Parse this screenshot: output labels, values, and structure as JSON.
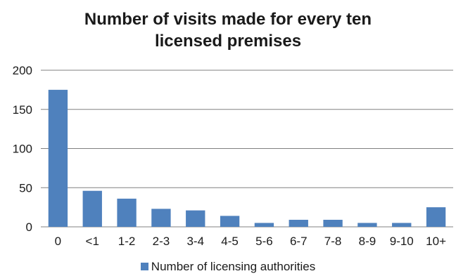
{
  "chart_data": {
    "type": "bar",
    "title_lines": [
      "Number of visits made for every ten",
      "licensed premises"
    ],
    "categories": [
      "0",
      "<1",
      "1-2",
      "2-3",
      "3-4",
      "4-5",
      "5-6",
      "6-7",
      "7-8",
      "8-9",
      "9-10",
      "10+"
    ],
    "series": [
      {
        "name": "Number of licensing authorities",
        "values": [
          175,
          46,
          36,
          23,
          21,
          14,
          5,
          9,
          9,
          5,
          5,
          25
        ]
      }
    ],
    "yticks": [
      0,
      50,
      100,
      150,
      200
    ],
    "ylim": [
      0,
      200
    ],
    "grid": true,
    "legend_position": "bottom",
    "colors": {
      "bar": "#4f81bd",
      "grid": "#808080",
      "axis": "#808080"
    }
  }
}
